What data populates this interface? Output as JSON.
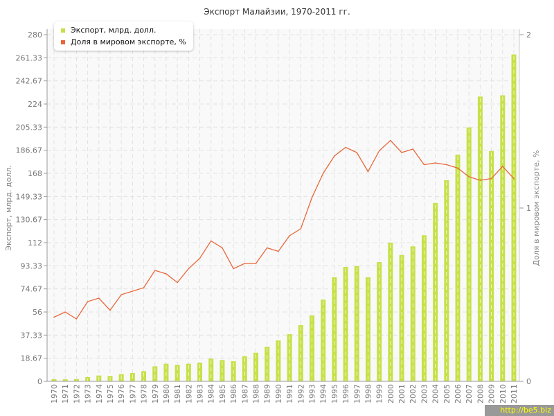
{
  "chart_data": {
    "type": "bar+line",
    "title": "Экспорт Малайзии, 1970-2011 гг.",
    "ylabel": "Экспорт, млрд. долл.",
    "y2label": "Доля в мировом экспорте, %",
    "ylim": [
      0,
      280
    ],
    "y2lim": [
      0,
      2
    ],
    "yticks": [
      "0",
      "18.67",
      "37.33",
      "56",
      "74.67",
      "93.33",
      "112",
      "130.67",
      "149.33",
      "168",
      "186.67",
      "205.33",
      "224",
      "242.67",
      "261.33",
      "280"
    ],
    "y2ticks": [
      "0",
      "1",
      "2"
    ],
    "grid": true,
    "legend": "top-left",
    "categories": [
      "1970",
      "1971",
      "1972",
      "1973",
      "1974",
      "1975",
      "1976",
      "1977",
      "1978",
      "1979",
      "1980",
      "1981",
      "1982",
      "1983",
      "1984",
      "1985",
      "1986",
      "1987",
      "1988",
      "1989",
      "1990",
      "1991",
      "1992",
      "1993",
      "1994",
      "1995",
      "1996",
      "1997",
      "1998",
      "1999",
      "2000",
      "2001",
      "2002",
      "2003",
      "2004",
      "2005",
      "2006",
      "2007",
      "2008",
      "2009",
      "2010",
      "2011"
    ],
    "series": [
      {
        "name": "Экспорт, млрд. долл.",
        "type": "bar",
        "axis": "left",
        "color": "#c6e048",
        "values": [
          1.7,
          1.6,
          1.8,
          3.4,
          4.7,
          4.3,
          5.8,
          6.7,
          8.2,
          12.1,
          14.2,
          13.3,
          14.2,
          15.1,
          18.3,
          17.2,
          16.2,
          20.2,
          23.1,
          28,
          33,
          38.1,
          45.4,
          53.2,
          66,
          84,
          92.4,
          93,
          84,
          96.3,
          112,
          102,
          109,
          118,
          144,
          162.4,
          183,
          205,
          230,
          186,
          231,
          264
        ]
      },
      {
        "name": "Доля в мировом экспорте, %",
        "type": "line",
        "axis": "right",
        "color": "#e8673a",
        "values": [
          0.37,
          0.4,
          0.36,
          0.46,
          0.48,
          0.41,
          0.5,
          0.52,
          0.54,
          0.64,
          0.62,
          0.57,
          0.65,
          0.71,
          0.81,
          0.77,
          0.65,
          0.68,
          0.68,
          0.77,
          0.75,
          0.84,
          0.88,
          1.06,
          1.2,
          1.3,
          1.35,
          1.32,
          1.21,
          1.33,
          1.39,
          1.32,
          1.34,
          1.25,
          1.26,
          1.25,
          1.23,
          1.18,
          1.16,
          1.17,
          1.24,
          1.17
        ]
      }
    ]
  },
  "watermark": "http://be5.biz"
}
